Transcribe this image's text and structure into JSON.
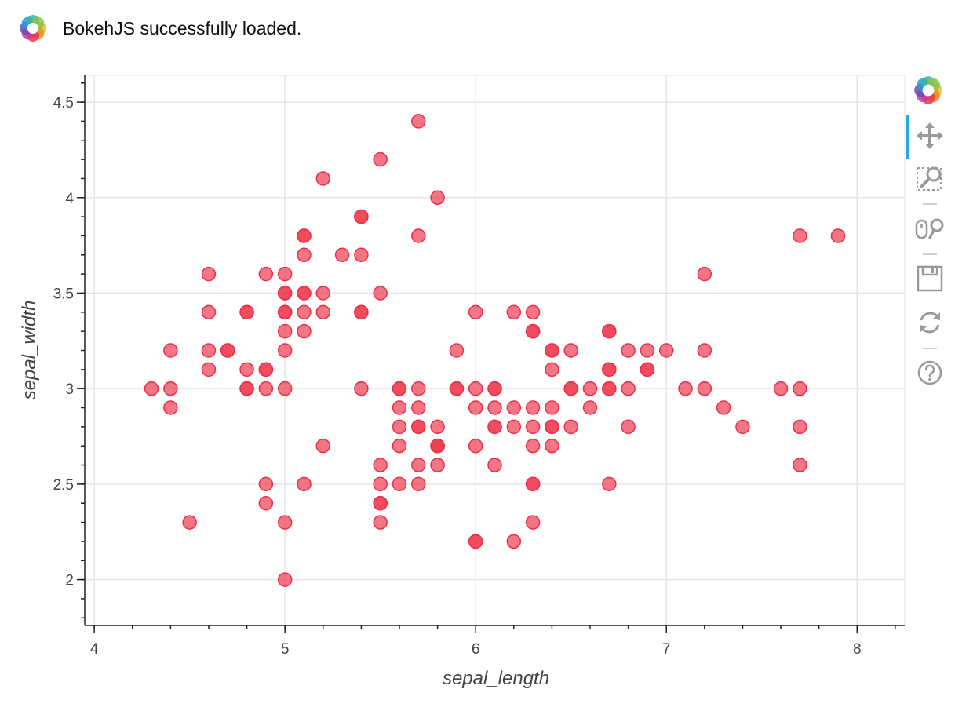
{
  "banner": {
    "text": "BokehJS successfully loaded.",
    "logo_icon": "bokeh-logo-icon"
  },
  "toolbar": {
    "logo_icon": "bokeh-logo-icon",
    "tools": [
      {
        "name": "pan-tool",
        "icon": "pan-icon",
        "active": true
      },
      {
        "name": "box-zoom-tool",
        "icon": "box-zoom-icon",
        "active": false
      },
      {
        "name": "wheel-zoom-tool",
        "icon": "wheel-zoom-icon",
        "active": false
      },
      {
        "name": "save-tool",
        "icon": "save-icon",
        "active": false
      },
      {
        "name": "reset-tool",
        "icon": "reset-icon",
        "active": false
      },
      {
        "name": "help-tool",
        "icon": "help-icon",
        "active": false
      }
    ],
    "accent_color": "#26aae1"
  },
  "chart_data": {
    "type": "scatter",
    "xlabel": "sepal_length",
    "ylabel": "sepal_width",
    "xlim": [
      3.95,
      8.25
    ],
    "ylim": [
      1.76,
      4.64
    ],
    "x_ticks": [
      4,
      5,
      6,
      7,
      8
    ],
    "y_ticks": [
      2,
      2.5,
      3,
      3.5,
      4,
      4.5
    ],
    "x_tick_labels": [
      "4",
      "5",
      "6",
      "7",
      "8"
    ],
    "y_tick_labels": [
      "2",
      "2.5",
      "3",
      "3.5",
      "4",
      "4.5"
    ],
    "grid": true,
    "marker": {
      "shape": "circle",
      "fill": "#f03a4f",
      "fill_alpha": 0.7,
      "line": "#e8304a"
    },
    "points": [
      [
        4.3,
        3.0
      ],
      [
        4.4,
        3.2
      ],
      [
        4.4,
        3.0
      ],
      [
        4.4,
        2.9
      ],
      [
        4.5,
        2.3
      ],
      [
        4.6,
        3.6
      ],
      [
        4.6,
        3.4
      ],
      [
        4.6,
        3.2
      ],
      [
        4.6,
        3.1
      ],
      [
        4.7,
        3.2
      ],
      [
        4.7,
        3.2
      ],
      [
        4.8,
        3.4
      ],
      [
        4.8,
        3.4
      ],
      [
        4.8,
        3.1
      ],
      [
        4.8,
        3.0
      ],
      [
        4.8,
        3.0
      ],
      [
        4.9,
        3.6
      ],
      [
        4.9,
        3.1
      ],
      [
        4.9,
        3.1
      ],
      [
        4.9,
        3.0
      ],
      [
        4.9,
        2.5
      ],
      [
        4.9,
        2.4
      ],
      [
        5.0,
        3.6
      ],
      [
        5.0,
        3.5
      ],
      [
        5.0,
        3.5
      ],
      [
        5.0,
        3.4
      ],
      [
        5.0,
        3.4
      ],
      [
        5.0,
        3.3
      ],
      [
        5.0,
        3.2
      ],
      [
        5.0,
        3.0
      ],
      [
        5.0,
        2.3
      ],
      [
        5.0,
        2.0
      ],
      [
        5.1,
        3.8
      ],
      [
        5.1,
        3.8
      ],
      [
        5.1,
        3.7
      ],
      [
        5.1,
        3.5
      ],
      [
        5.1,
        3.5
      ],
      [
        5.1,
        3.4
      ],
      [
        5.1,
        3.3
      ],
      [
        5.1,
        2.5
      ],
      [
        5.2,
        4.1
      ],
      [
        5.2,
        3.5
      ],
      [
        5.2,
        3.4
      ],
      [
        5.2,
        2.7
      ],
      [
        5.3,
        3.7
      ],
      [
        5.4,
        3.9
      ],
      [
        5.4,
        3.9
      ],
      [
        5.4,
        3.7
      ],
      [
        5.4,
        3.4
      ],
      [
        5.4,
        3.4
      ],
      [
        5.4,
        3.0
      ],
      [
        5.5,
        4.2
      ],
      [
        5.5,
        3.5
      ],
      [
        5.5,
        2.6
      ],
      [
        5.5,
        2.5
      ],
      [
        5.5,
        2.4
      ],
      [
        5.5,
        2.4
      ],
      [
        5.5,
        2.3
      ],
      [
        5.6,
        3.0
      ],
      [
        5.6,
        3.0
      ],
      [
        5.6,
        2.9
      ],
      [
        5.6,
        2.8
      ],
      [
        5.6,
        2.7
      ],
      [
        5.6,
        2.5
      ],
      [
        5.7,
        4.4
      ],
      [
        5.7,
        3.8
      ],
      [
        5.7,
        3.0
      ],
      [
        5.7,
        2.9
      ],
      [
        5.7,
        2.8
      ],
      [
        5.7,
        2.8
      ],
      [
        5.7,
        2.6
      ],
      [
        5.7,
        2.5
      ],
      [
        5.8,
        4.0
      ],
      [
        5.8,
        2.8
      ],
      [
        5.8,
        2.7
      ],
      [
        5.8,
        2.7
      ],
      [
        5.8,
        2.7
      ],
      [
        5.8,
        2.6
      ],
      [
        5.9,
        3.2
      ],
      [
        5.9,
        3.0
      ],
      [
        5.9,
        3.0
      ],
      [
        6.0,
        3.4
      ],
      [
        6.0,
        3.0
      ],
      [
        6.0,
        2.9
      ],
      [
        6.0,
        2.7
      ],
      [
        6.0,
        2.2
      ],
      [
        6.0,
        2.2
      ],
      [
        6.1,
        3.0
      ],
      [
        6.1,
        3.0
      ],
      [
        6.1,
        2.9
      ],
      [
        6.1,
        2.8
      ],
      [
        6.1,
        2.8
      ],
      [
        6.1,
        2.6
      ],
      [
        6.2,
        3.4
      ],
      [
        6.2,
        2.9
      ],
      [
        6.2,
        2.8
      ],
      [
        6.2,
        2.2
      ],
      [
        6.3,
        3.4
      ],
      [
        6.3,
        3.3
      ],
      [
        6.3,
        3.3
      ],
      [
        6.3,
        2.9
      ],
      [
        6.3,
        2.8
      ],
      [
        6.3,
        2.7
      ],
      [
        6.3,
        2.5
      ],
      [
        6.3,
        2.5
      ],
      [
        6.3,
        2.3
      ],
      [
        6.4,
        3.2
      ],
      [
        6.4,
        3.2
      ],
      [
        6.4,
        3.1
      ],
      [
        6.4,
        2.9
      ],
      [
        6.4,
        2.8
      ],
      [
        6.4,
        2.8
      ],
      [
        6.4,
        2.7
      ],
      [
        6.5,
        3.2
      ],
      [
        6.5,
        3.0
      ],
      [
        6.5,
        3.0
      ],
      [
        6.5,
        2.8
      ],
      [
        6.6,
        3.0
      ],
      [
        6.6,
        2.9
      ],
      [
        6.7,
        3.3
      ],
      [
        6.7,
        3.3
      ],
      [
        6.7,
        3.1
      ],
      [
        6.7,
        3.1
      ],
      [
        6.7,
        3.0
      ],
      [
        6.7,
        3.0
      ],
      [
        6.7,
        2.5
      ],
      [
        6.8,
        3.2
      ],
      [
        6.8,
        3.0
      ],
      [
        6.8,
        2.8
      ],
      [
        6.9,
        3.2
      ],
      [
        6.9,
        3.1
      ],
      [
        6.9,
        3.1
      ],
      [
        7.0,
        3.2
      ],
      [
        7.1,
        3.0
      ],
      [
        7.2,
        3.6
      ],
      [
        7.2,
        3.2
      ],
      [
        7.2,
        3.0
      ],
      [
        7.3,
        2.9
      ],
      [
        7.4,
        2.8
      ],
      [
        7.6,
        3.0
      ],
      [
        7.7,
        3.8
      ],
      [
        7.7,
        3.0
      ],
      [
        7.7,
        2.8
      ],
      [
        7.7,
        2.6
      ],
      [
        7.9,
        3.8
      ]
    ]
  }
}
